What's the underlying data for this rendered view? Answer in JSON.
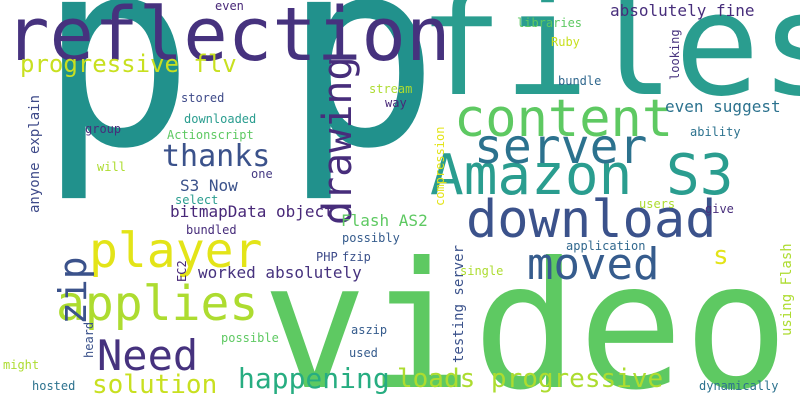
{
  "words": [
    {
      "text": "p",
      "color": "#21918c",
      "vertical": false
    },
    {
      "text": "p",
      "color": "#21918c",
      "vertical": false
    },
    {
      "text": "video",
      "color": "#5ec962",
      "vertical": false
    },
    {
      "text": "files",
      "color": "#2a9d8f",
      "vertical": false
    },
    {
      "text": "reflection",
      "color": "#46327e",
      "vertical": false
    },
    {
      "text": "Amazon S3",
      "color": "#2a9d8f",
      "vertical": false
    },
    {
      "text": "content",
      "color": "#5ec962",
      "vertical": false
    },
    {
      "text": "server",
      "color": "#2c728e",
      "vertical": false
    },
    {
      "text": "download",
      "color": "#3b528b",
      "vertical": false
    },
    {
      "text": "player",
      "color": "#e3e418",
      "vertical": false
    },
    {
      "text": "applies",
      "color": "#addc30",
      "vertical": false
    },
    {
      "text": "moved",
      "color": "#365c8d",
      "vertical": false
    },
    {
      "text": "creating",
      "color": "#5ec962",
      "vertical": true
    },
    {
      "text": "drawing",
      "color": "#472d7b",
      "vertical": true
    },
    {
      "text": "zip",
      "color": "#3b528b",
      "vertical": true
    },
    {
      "text": "Need",
      "color": "#46327e",
      "vertical": false
    },
    {
      "text": "thanks",
      "color": "#3b528b",
      "vertical": false
    },
    {
      "text": "happening",
      "color": "#27ad81",
      "vertical": false
    },
    {
      "text": "loads progressive",
      "color": "#addc30",
      "vertical": false
    },
    {
      "text": "solution",
      "color": "#c8e020",
      "vertical": false
    },
    {
      "text": "progressive flv",
      "color": "#c8e020",
      "vertical": false
    },
    {
      "text": "s",
      "color": "#e3e418",
      "vertical": false
    },
    {
      "text": "absolutely fine",
      "color": "#472d7b",
      "vertical": false
    },
    {
      "text": "S3 Now",
      "color": "#3b528b",
      "vertical": false
    },
    {
      "text": "bitmapData object",
      "color": "#482878",
      "vertical": false
    },
    {
      "text": "Flash AS2",
      "color": "#5ec962",
      "vertical": false
    },
    {
      "text": "worked absolutely",
      "color": "#46327e",
      "vertical": false
    },
    {
      "text": "even suggest",
      "color": "#2c728e",
      "vertical": false
    },
    {
      "text": "anyone explain",
      "color": "#3e4a89",
      "vertical": true
    },
    {
      "text": "testing server",
      "color": "#3b528b",
      "vertical": true
    },
    {
      "text": "using Flash",
      "color": "#addc30",
      "vertical": true
    },
    {
      "text": "compression",
      "color": "#e3e418",
      "vertical": true
    },
    {
      "text": "libraries",
      "color": "#5ec962",
      "vertical": false
    },
    {
      "text": "Ruby",
      "color": "#c8e020",
      "vertical": false
    },
    {
      "text": "stream",
      "color": "#addc30",
      "vertical": false
    },
    {
      "text": "way",
      "color": "#482878",
      "vertical": false
    },
    {
      "text": "bundle",
      "color": "#31688e",
      "vertical": false
    },
    {
      "text": "looking",
      "color": "#46327e",
      "vertical": true
    },
    {
      "text": "even",
      "color": "#482878",
      "vertical": false
    },
    {
      "text": "stored",
      "color": "#3e4a89",
      "vertical": false
    },
    {
      "text": "downloaded",
      "color": "#2a9d8f",
      "vertical": false
    },
    {
      "text": "group",
      "color": "#472d7b",
      "vertical": false
    },
    {
      "text": "Actionscript",
      "color": "#5ec962",
      "vertical": false
    },
    {
      "text": "will",
      "color": "#addc30",
      "vertical": false
    },
    {
      "text": "one",
      "color": "#443983",
      "vertical": false
    },
    {
      "text": "ability",
      "color": "#2c728e",
      "vertical": false
    },
    {
      "text": "select",
      "color": "#2a9d8f",
      "vertical": false
    },
    {
      "text": "bundled",
      "color": "#472d7b",
      "vertical": false
    },
    {
      "text": "users",
      "color": "#addc30",
      "vertical": false
    },
    {
      "text": "give",
      "color": "#472d7b",
      "vertical": false
    },
    {
      "text": "possibly",
      "color": "#365c8d",
      "vertical": false
    },
    {
      "text": "PHP",
      "color": "#3e4a89",
      "vertical": false
    },
    {
      "text": "fzip",
      "color": "#3b528b",
      "vertical": false
    },
    {
      "text": "application",
      "color": "#31688e",
      "vertical": false
    },
    {
      "text": "EC2",
      "color": "#482878",
      "vertical": true
    },
    {
      "text": "single",
      "color": "#addc30",
      "vertical": false
    },
    {
      "text": "heard",
      "color": "#3b528b",
      "vertical": true
    },
    {
      "text": "aszip",
      "color": "#365c8d",
      "vertical": false
    },
    {
      "text": "possible",
      "color": "#5ec962",
      "vertical": false
    },
    {
      "text": "used",
      "color": "#365c8d",
      "vertical": false
    },
    {
      "text": "might",
      "color": "#addc30",
      "vertical": false
    },
    {
      "text": "hosted",
      "color": "#2c728e",
      "vertical": false
    },
    {
      "text": "dynamically",
      "color": "#2c728e",
      "vertical": false
    }
  ]
}
